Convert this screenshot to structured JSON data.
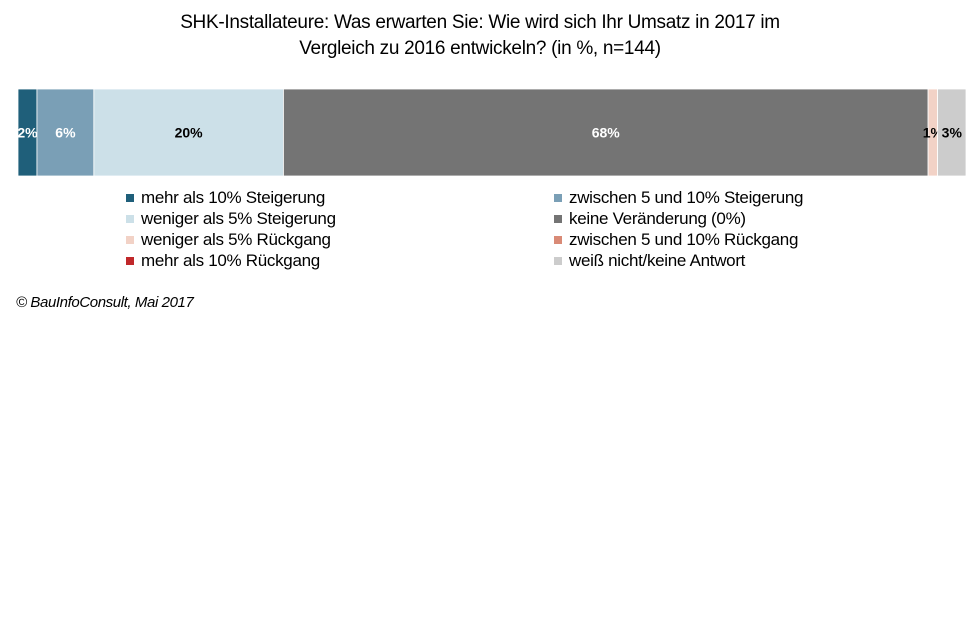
{
  "title_line1": "SHK-Installateure:  Was erwarten Sie: Wie wird sich Ihr Umsatz  in 2017 im",
  "title_line2": "Vergleich  zu 2016 entwickeln? (in %, n=144)",
  "source": "© BauInfoConsult, Mai 2017",
  "chart_data": {
    "type": "bar",
    "orientation": "horizontal-stacked-100",
    "title": "SHK-Installateure:  Was erwarten Sie: Wie wird sich Ihr Umsatz  in 2017 im Vergleich  zu 2016 entwickeln? (in %, n=144)",
    "xlim": [
      0,
      100
    ],
    "legend_position": "bottom",
    "grid": false,
    "series": [
      {
        "name": "mehr als 10% Steigerung",
        "value": 2,
        "label": "2%",
        "color": "#1f5f7a",
        "label_color": "#ffffff"
      },
      {
        "name": "zwischen 5 und 10% Steigerung",
        "value": 6,
        "label": "6%",
        "color": "#7a9fb6",
        "label_color": "#ffffff"
      },
      {
        "name": "weniger als 5% Steigerung",
        "value": 20,
        "label": "20%",
        "color": "#cce0e8",
        "label_color": "#000000"
      },
      {
        "name": "keine Veränderung (0%)",
        "value": 68,
        "label": "68%",
        "color": "#747474",
        "label_color": "#ffffff"
      },
      {
        "name": "weniger als 5% Rückgang",
        "value": 1,
        "label": "1%",
        "color": "#f2d2c6",
        "label_color": "#000000"
      },
      {
        "name": "zwischen 5 und 10% Rückgang",
        "value": 0,
        "label": "",
        "color": "#d98a76",
        "label_color": "#000000"
      },
      {
        "name": "mehr als 10% Rückgang",
        "value": 0,
        "label": "",
        "color": "#c0282a",
        "label_color": "#000000"
      },
      {
        "name": "weiß nicht/keine Antwort",
        "value": 3,
        "label": "3%",
        "color": "#cccccc",
        "label_color": "#000000"
      }
    ]
  }
}
